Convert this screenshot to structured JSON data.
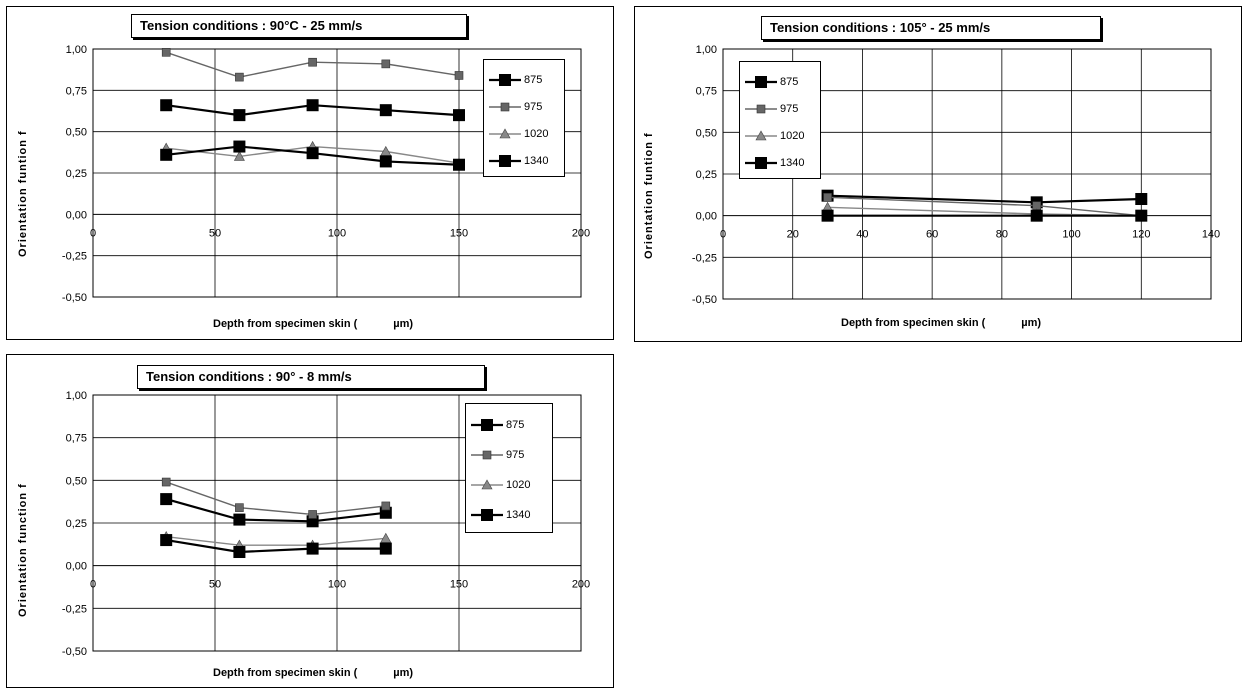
{
  "chart_data": [
    {
      "type": "line",
      "title": "Tension conditions : 90°C - 25 mm/s",
      "xlabel": "Depth from specimen skin (",
      "xunit": "µm)",
      "ylabel": "Orientation funtion f",
      "xlim": [
        0,
        200
      ],
      "ylim": [
        -0.5,
        1.0
      ],
      "xticks": [
        "0",
        "50",
        "100",
        "150",
        "200"
      ],
      "xtick_values": [
        0,
        50,
        100,
        150,
        200
      ],
      "yticks": [
        "1,00",
        "0,75",
        "0,50",
        "0,25",
        "0,00",
        "-0,25",
        "-0,50"
      ],
      "ytick_values": [
        1.0,
        0.75,
        0.5,
        0.25,
        0.0,
        -0.25,
        -0.5
      ],
      "grid": "vertical",
      "legend_position": "top-right",
      "series": [
        {
          "name": "875",
          "color": "#000000",
          "marker": "square",
          "x": [
            30,
            60,
            90,
            120,
            150
          ],
          "y": [
            0.66,
            0.6,
            0.66,
            0.63,
            0.6
          ]
        },
        {
          "name": "975",
          "color": "#666666",
          "marker": "square-small",
          "x": [
            30,
            60,
            90,
            120,
            150
          ],
          "y": [
            0.98,
            0.83,
            0.92,
            0.91,
            0.84
          ]
        },
        {
          "name": "1020",
          "color": "#888888",
          "marker": "triangle",
          "x": [
            30,
            60,
            90,
            120,
            150
          ],
          "y": [
            0.4,
            0.35,
            0.41,
            0.38,
            0.31
          ]
        },
        {
          "name": "1340",
          "color": "#000000",
          "marker": "square",
          "x": [
            30,
            60,
            90,
            120,
            150
          ],
          "y": [
            0.36,
            0.41,
            0.37,
            0.32,
            0.3
          ]
        }
      ]
    },
    {
      "type": "line",
      "title": "Tension conditions : 105° - 25 mm/s",
      "xlabel": "Depth from specimen skin (",
      "xunit": "µm)",
      "ylabel": "Orientation funtion f",
      "xlim": [
        0,
        140
      ],
      "ylim": [
        -0.5,
        1.0
      ],
      "xticks": [
        "0",
        "20",
        "40",
        "60",
        "80",
        "100",
        "120",
        "140"
      ],
      "xtick_values": [
        0,
        20,
        40,
        60,
        80,
        100,
        120,
        140
      ],
      "yticks": [
        "1,00",
        "0,75",
        "0,50",
        "0,25",
        "0,00",
        "-0,25",
        "-0,50"
      ],
      "ytick_values": [
        1.0,
        0.75,
        0.5,
        0.25,
        0.0,
        -0.25,
        -0.5
      ],
      "grid": "both",
      "legend_position": "top-left",
      "series": [
        {
          "name": "875",
          "color": "#000000",
          "marker": "square",
          "x": [
            30,
            90,
            120
          ],
          "y": [
            0.12,
            0.08,
            0.1
          ]
        },
        {
          "name": "975",
          "color": "#666666",
          "marker": "square-small",
          "x": [
            30,
            90,
            120
          ],
          "y": [
            0.11,
            0.06,
            0.0
          ]
        },
        {
          "name": "1020",
          "color": "#888888",
          "marker": "triangle",
          "x": [
            30,
            90,
            120
          ],
          "y": [
            0.05,
            0.01,
            0.0
          ]
        },
        {
          "name": "1340",
          "color": "#000000",
          "marker": "square",
          "x": [
            30,
            90,
            120
          ],
          "y": [
            0.0,
            0.0,
            0.0
          ]
        }
      ]
    },
    {
      "type": "line",
      "title": "Tension conditions : 90° - 8 mm/s",
      "xlabel": "Depth from specimen skin (",
      "xunit": "µm)",
      "ylabel": "Orientation function f",
      "xlim": [
        0,
        200
      ],
      "ylim": [
        -0.5,
        1.0
      ],
      "xticks": [
        "0",
        "50",
        "100",
        "150",
        "200"
      ],
      "xtick_values": [
        0,
        50,
        100,
        150,
        200
      ],
      "yticks": [
        "1,00",
        "0,75",
        "0,50",
        "0,25",
        "0,00",
        "-0,25",
        "-0,50"
      ],
      "ytick_values": [
        1.0,
        0.75,
        0.5,
        0.25,
        0.0,
        -0.25,
        -0.5
      ],
      "grid": "vertical",
      "legend_position": "top-right",
      "series": [
        {
          "name": "875",
          "color": "#000000",
          "marker": "square",
          "x": [
            30,
            60,
            90,
            120
          ],
          "y": [
            0.39,
            0.27,
            0.26,
            0.31
          ]
        },
        {
          "name": "975",
          "color": "#666666",
          "marker": "square-small",
          "x": [
            30,
            60,
            90,
            120
          ],
          "y": [
            0.49,
            0.34,
            0.3,
            0.35
          ]
        },
        {
          "name": "1020",
          "color": "#888888",
          "marker": "triangle",
          "x": [
            30,
            60,
            90,
            120
          ],
          "y": [
            0.17,
            0.12,
            0.12,
            0.16
          ]
        },
        {
          "name": "1340",
          "color": "#000000",
          "marker": "square",
          "x": [
            30,
            60,
            90,
            120
          ],
          "y": [
            0.15,
            0.08,
            0.1,
            0.1
          ]
        }
      ]
    }
  ]
}
